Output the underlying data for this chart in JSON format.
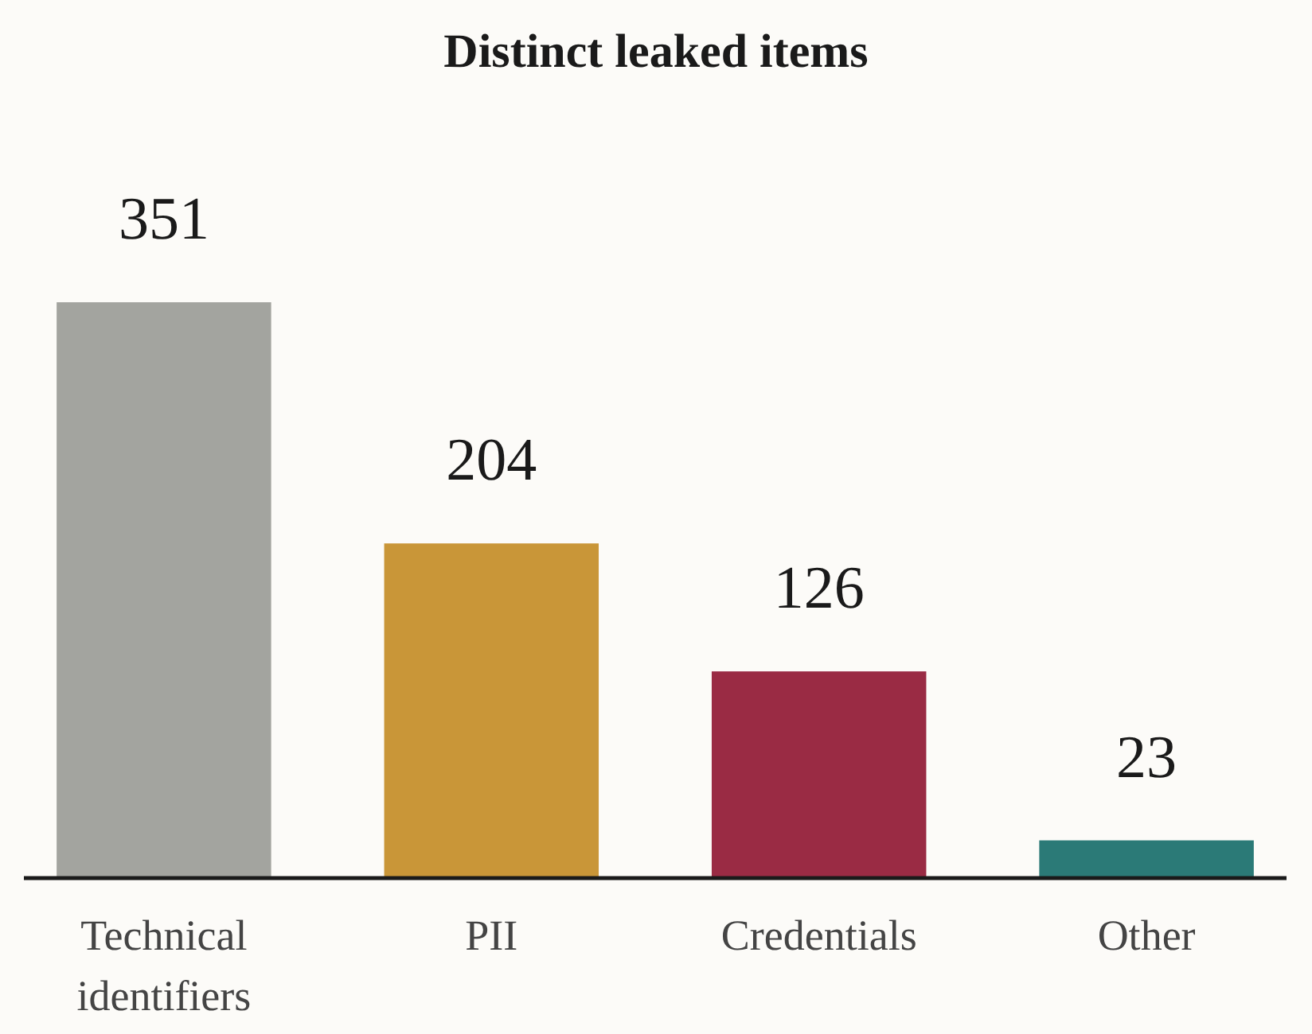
{
  "chart_data": {
    "type": "bar",
    "title": "Distinct leaked items",
    "categories": [
      "Technical identifiers",
      "PII",
      "Credentials",
      "Other"
    ],
    "values": [
      351,
      204,
      126,
      23
    ],
    "colors": [
      "#a3a49f",
      "#c99638",
      "#9a2b44",
      "#2b7a77"
    ],
    "data_labels": true
  }
}
